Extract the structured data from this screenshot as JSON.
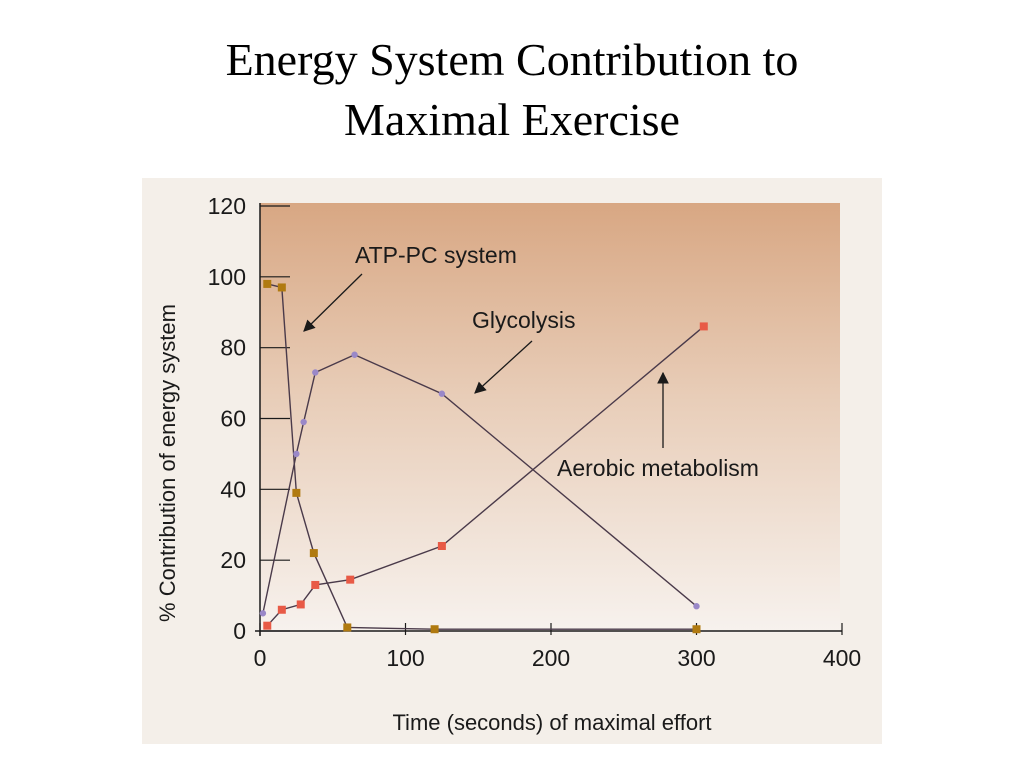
{
  "slide": {
    "title_line1": "Energy System Contribution to",
    "title_line2": "Maximal Exercise"
  },
  "chart_data": {
    "type": "line",
    "title": "Energy System Contribution to Maximal Exercise",
    "xlabel": "Time (seconds) of maximal effort",
    "ylabel": "% Contribution of energy system",
    "xlim": [
      0,
      400
    ],
    "ylim": [
      0,
      120
    ],
    "xticks": [
      0,
      100,
      200,
      300,
      400
    ],
    "yticks": [
      0,
      20,
      40,
      60,
      80,
      100,
      120
    ],
    "grid": false,
    "legend": "none (series labelled with arrows)",
    "series": [
      {
        "name": "ATP-PC system",
        "color": "#b07a10",
        "marker": "square",
        "x": [
          5,
          15,
          25,
          37,
          60,
          120,
          300
        ],
        "y": [
          98,
          97,
          39,
          22,
          1,
          0.5,
          0.5
        ]
      },
      {
        "name": "Glycolysis",
        "color": "#9a88c8",
        "marker": "circle",
        "x": [
          2,
          25,
          30,
          38,
          65,
          125,
          300
        ],
        "y": [
          5,
          50,
          59,
          73,
          78,
          67,
          7
        ]
      },
      {
        "name": "Aerobic metabolism",
        "color": "#e85a46",
        "marker": "square",
        "x": [
          5,
          15,
          28,
          38,
          62,
          125,
          305
        ],
        "y": [
          1.5,
          6,
          7.5,
          13,
          14.5,
          24,
          86
        ]
      }
    ],
    "annotations": [
      {
        "text": "ATP-PC system",
        "points_to": "ATP-PC system"
      },
      {
        "text": "Glycolysis",
        "points_to": "Glycolysis"
      },
      {
        "text": "Aerobic metabolism",
        "points_to": "Aerobic metabolism"
      }
    ]
  }
}
